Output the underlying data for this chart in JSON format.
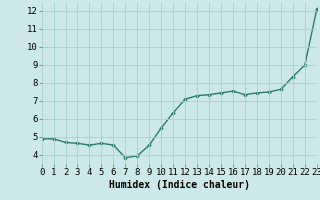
{
  "x": [
    0,
    1,
    2,
    3,
    4,
    5,
    6,
    7,
    8,
    9,
    10,
    11,
    12,
    13,
    14,
    15,
    16,
    17,
    18,
    19,
    20,
    21,
    22,
    23
  ],
  "y": [
    4.9,
    4.9,
    4.7,
    4.65,
    4.55,
    4.65,
    4.55,
    3.85,
    3.95,
    4.55,
    5.5,
    6.35,
    7.1,
    7.3,
    7.35,
    7.45,
    7.55,
    7.35,
    7.45,
    7.5,
    7.65,
    8.35,
    9.0,
    12.1
  ],
  "xlim": [
    0,
    23
  ],
  "ylim": [
    3.5,
    12.5
  ],
  "yticks": [
    4,
    5,
    6,
    7,
    8,
    9,
    10,
    11,
    12
  ],
  "xticks": [
    0,
    1,
    2,
    3,
    4,
    5,
    6,
    7,
    8,
    9,
    10,
    11,
    12,
    13,
    14,
    15,
    16,
    17,
    18,
    19,
    20,
    21,
    22,
    23
  ],
  "xlabel": "Humidex (Indice chaleur)",
  "line_color": "#2d7b6e",
  "marker": "D",
  "marker_size": 1.8,
  "bg_color": "#cce8e8",
  "grid_color": "#aacece",
  "xlabel_fontsize": 7,
  "tick_fontsize": 6.5,
  "line_width": 1.0
}
